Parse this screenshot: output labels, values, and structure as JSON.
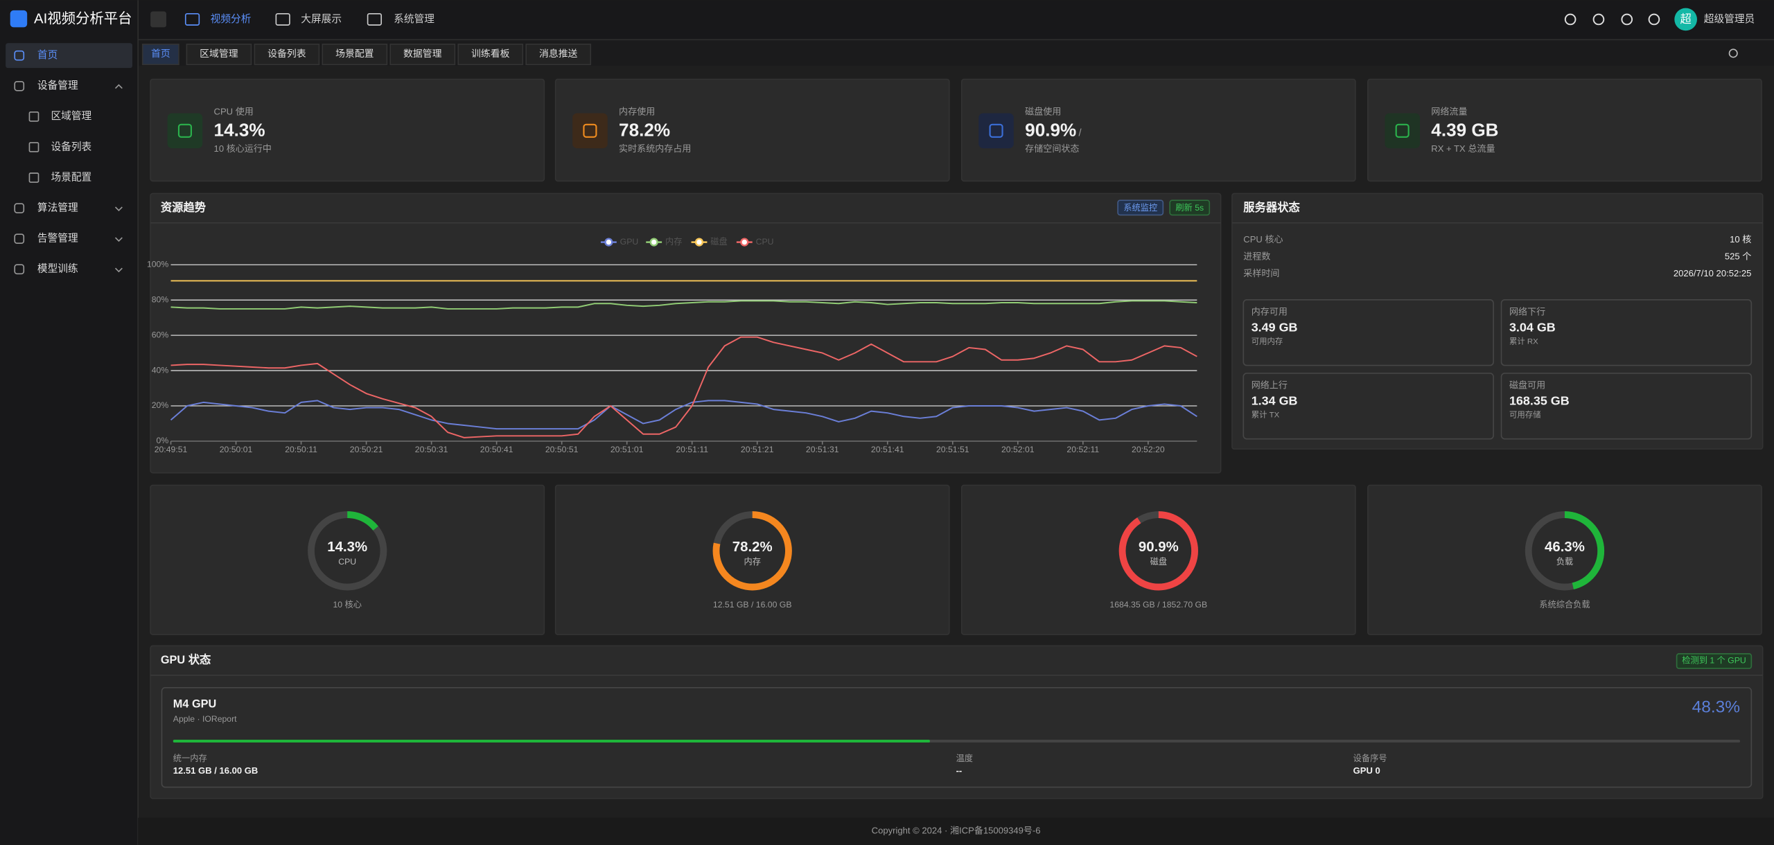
{
  "sidebar": {
    "brand": "AI视频分析平台",
    "menu": [
      {
        "label": "首页"
      },
      {
        "label": "设备管理",
        "children": [
          "区域管理",
          "设备列表",
          "场景配置"
        ]
      },
      {
        "label": "算法管理"
      },
      {
        "label": "告警管理"
      },
      {
        "label": "模型训练"
      }
    ]
  },
  "header": {
    "nav": [
      "视频分析",
      "大屏展示",
      "系统管理"
    ],
    "avatar": "超",
    "user": "超级管理员"
  },
  "tabs": [
    "首页",
    "区域管理",
    "设备列表",
    "场景配置",
    "数据管理",
    "训练看板",
    "消息推送"
  ],
  "stats": [
    {
      "label": "CPU 使用",
      "value": "14.3%",
      "sub": "10 核心运行中"
    },
    {
      "label": "内存使用",
      "value": "78.2%",
      "sub": "实时系统内存占用"
    },
    {
      "label": "磁盘使用",
      "value": "90.9%",
      "suffix": "/",
      "sub": "存储空间状态"
    },
    {
      "label": "网络流量",
      "value": "4.39 GB",
      "sub": "RX + TX 总流量"
    }
  ],
  "trend_panel": {
    "badges": [
      "系统监控",
      "刷新 5s"
    ]
  },
  "chart_data": {
    "type": "line",
    "title": "资源趋势",
    "categories": [
      "20:49:51",
      null,
      null,
      null,
      "20:50:01",
      null,
      null,
      null,
      "20:50:11",
      null,
      null,
      null,
      "20:50:21",
      null,
      null,
      null,
      "20:50:31",
      null,
      null,
      null,
      "20:50:41",
      null,
      null,
      null,
      "20:50:51",
      null,
      null,
      null,
      "20:51:01",
      null,
      null,
      null,
      "20:51:11",
      null,
      null,
      null,
      "20:51:21",
      null,
      null,
      null,
      "20:51:31",
      null,
      null,
      null,
      "20:51:41",
      null,
      null,
      null,
      "20:51:51",
      null,
      null,
      null,
      "20:52:01",
      null,
      null,
      null,
      "20:52:11",
      null,
      null,
      null,
      "20:52:20",
      null,
      null,
      null
    ],
    "ylim": [
      0,
      100
    ],
    "yticks": [
      {
        "value": 0,
        "label": "0%"
      },
      {
        "value": 20,
        "label": "20%"
      },
      {
        "value": 40,
        "label": "40%"
      },
      {
        "value": 60,
        "label": "60%"
      },
      {
        "value": 80,
        "label": "80%"
      },
      {
        "value": 100,
        "label": "100%"
      }
    ],
    "grid": true,
    "legend": "top",
    "series": [
      {
        "name": "GPU",
        "color": "#6b7fd8",
        "values": [
          12,
          20,
          22,
          21,
          20,
          19,
          17,
          16,
          22,
          23,
          19,
          18,
          19,
          19,
          18,
          15,
          12,
          10,
          9,
          8,
          7,
          7,
          7,
          7,
          7,
          7,
          12,
          20,
          15,
          10,
          12,
          18,
          22,
          23,
          23,
          22,
          21,
          18,
          17,
          16,
          14,
          11,
          13,
          17,
          16,
          14,
          13,
          14,
          19,
          20,
          20,
          20,
          19,
          17,
          18,
          19,
          17,
          12,
          13,
          18,
          20,
          21,
          20,
          14
        ]
      },
      {
        "name": "内存",
        "color": "#91cc75",
        "values": [
          76,
          75.5,
          75.5,
          75,
          75,
          75,
          75,
          75,
          76,
          75.5,
          76,
          76.5,
          76,
          75.5,
          75.5,
          75.5,
          76,
          75,
          75,
          75,
          75,
          75.5,
          75.5,
          75.5,
          76,
          76,
          78,
          78,
          77,
          76.5,
          77,
          78,
          78.5,
          79,
          79,
          79.5,
          79.5,
          79.5,
          79,
          79,
          78.5,
          78,
          79,
          78.5,
          77.5,
          78,
          78.5,
          78.5,
          78,
          78,
          78,
          78.5,
          78.5,
          78,
          78,
          78,
          78,
          78,
          79,
          79.5,
          79.5,
          79.5,
          79,
          78.5
        ]
      },
      {
        "name": "磁盘",
        "color": "#fac858",
        "values": [
          90.9,
          90.9,
          90.9,
          90.9,
          90.9,
          90.9,
          90.9,
          90.9,
          90.9,
          90.9,
          90.9,
          90.9,
          90.9,
          90.9,
          90.9,
          90.9,
          90.9,
          90.9,
          90.9,
          90.9,
          90.9,
          90.9,
          90.9,
          90.9,
          90.9,
          90.9,
          90.9,
          90.9,
          90.9,
          90.9,
          90.9,
          90.9,
          90.9,
          90.9,
          90.9,
          90.9,
          90.9,
          90.9,
          90.9,
          90.9,
          90.9,
          90.9,
          90.9,
          90.9,
          90.9,
          90.9,
          90.9,
          90.9,
          90.9,
          90.9,
          90.9,
          90.9,
          90.9,
          90.9,
          90.9,
          90.9,
          90.9,
          90.9,
          90.9,
          90.9,
          90.9,
          90.9,
          90.9,
          90.9
        ]
      },
      {
        "name": "CPU",
        "color": "#ee6666",
        "values": [
          43,
          43.5,
          43.5,
          43,
          42.5,
          42,
          41.5,
          41.5,
          43,
          44,
          38,
          32,
          27,
          24,
          21.5,
          19,
          14,
          5,
          2,
          2.5,
          3,
          3,
          3,
          3,
          3,
          4,
          14,
          20,
          12,
          4,
          4,
          8,
          20,
          42,
          54,
          59,
          59,
          56,
          54,
          52,
          50,
          46,
          50,
          55,
          50,
          45,
          45,
          45,
          48,
          53,
          52,
          46,
          46,
          47,
          50,
          54,
          52,
          45,
          45,
          46,
          50,
          54,
          53,
          48
        ]
      }
    ]
  },
  "server": {
    "title": "服务器状态",
    "rows": [
      [
        "CPU 核心",
        "10 核"
      ],
      [
        "进程数",
        "525 个"
      ],
      [
        "采样时间",
        "2026/7/10 20:52:25"
      ]
    ],
    "cards": [
      {
        "label": "内存可用",
        "value": "3.49 GB",
        "sub": "可用内存"
      },
      {
        "label": "网络下行",
        "value": "3.04 GB",
        "sub": "累计 RX"
      },
      {
        "label": "网络上行",
        "value": "1.34 GB",
        "sub": "累计 TX"
      },
      {
        "label": "磁盘可用",
        "value": "168.35 GB",
        "sub": "可用存储"
      }
    ]
  },
  "gauges": [
    {
      "value": 14.3,
      "value_label": "14.3%",
      "name": "CPU",
      "sub": "10 核心",
      "color": "#1fb53a"
    },
    {
      "value": 78.2,
      "value_label": "78.2%",
      "name": "内存",
      "sub": "12.51 GB / 16.00 GB",
      "color": "#f5871f"
    },
    {
      "value": 90.9,
      "value_label": "90.9%",
      "name": "磁盘",
      "sub": "1684.35 GB / 1852.70 GB",
      "color": "#ef4444"
    },
    {
      "value": 46.3,
      "value_label": "46.3%",
      "name": "负载",
      "sub": "系统综合负载",
      "color": "#1fb53a"
    }
  ],
  "gpu": {
    "title": "GPU 状态",
    "badge": "检测到 1 个 GPU",
    "name": "M4 GPU",
    "vendor": "Apple · IOReport",
    "usage": 48.3,
    "usage_label": "48.3%",
    "color": "#5b7fd8",
    "bar_color": "#1fb53a",
    "fields": [
      [
        "统一内存",
        "12.51 GB / 16.00 GB"
      ],
      [
        "温度",
        "--"
      ],
      [
        "设备序号",
        "GPU 0"
      ]
    ]
  },
  "footer": "Copyright © 2024 · 湘ICP备15009349号-6"
}
